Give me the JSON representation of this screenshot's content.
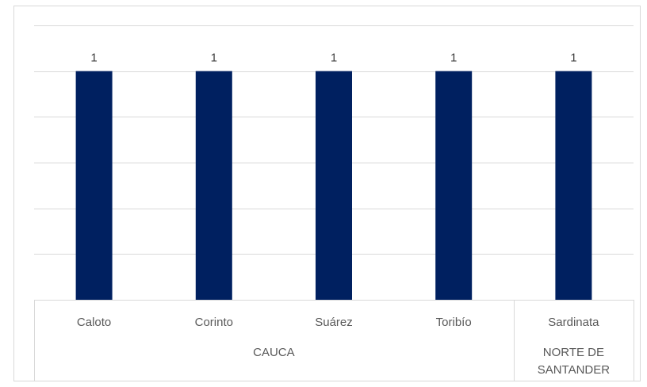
{
  "chart_data": {
    "type": "bar",
    "title": "",
    "xlabel": "",
    "ylabel": "",
    "categories": [
      "Caloto",
      "Corinto",
      "Suárez",
      "Toribío",
      "Sardinata"
    ],
    "groups": [
      {
        "label": [
          "CAUCA"
        ],
        "span": [
          0,
          3
        ]
      },
      {
        "label": [
          "NORTE DE",
          "SANTANDER"
        ],
        "span": [
          4,
          4
        ]
      }
    ],
    "values": [
      1,
      1,
      1,
      1,
      1
    ],
    "data_labels": [
      "1",
      "1",
      "1",
      "1",
      "1"
    ],
    "ylim": [
      0,
      1.2
    ],
    "y_gridlines": [
      0.2,
      0.4,
      0.6,
      0.8,
      1.0,
      1.2
    ],
    "grid": true,
    "legend": "none",
    "bar_color": "#002060"
  }
}
